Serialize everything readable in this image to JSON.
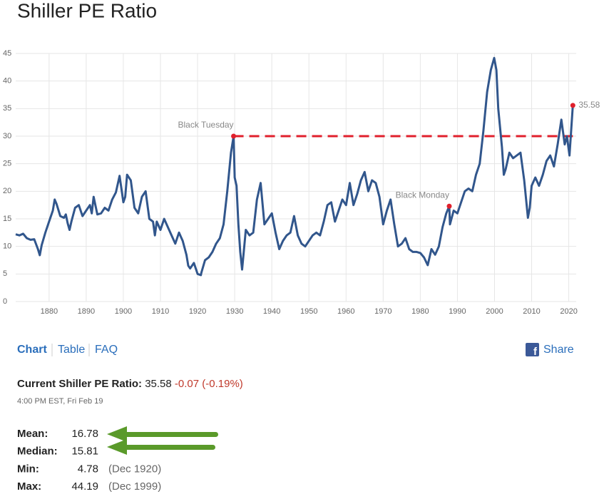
{
  "chart_data": {
    "type": "line",
    "title": "Shiller PE Ratio",
    "x": [
      1871,
      1872,
      1873,
      1874,
      1875,
      1876,
      1877,
      1877.5,
      1878,
      1879,
      1880,
      1881,
      1881.5,
      1882,
      1883,
      1884,
      1884.5,
      1885,
      1885.5,
      1886,
      1887,
      1888,
      1889,
      1890,
      1891,
      1891.5,
      1892,
      1893,
      1894,
      1895,
      1896,
      1897,
      1898,
      1899,
      1900,
      1900.5,
      1901,
      1902,
      1903,
      1904,
      1905,
      1906,
      1907,
      1908,
      1908.5,
      1909,
      1910,
      1911,
      1912,
      1913,
      1914,
      1915,
      1916,
      1917,
      1917.5,
      1918,
      1919,
      1920,
      1920.9,
      1921,
      1922,
      1923,
      1924,
      1925,
      1926,
      1927,
      1928,
      1929,
      1929.7,
      1930,
      1930.5,
      1931,
      1931.5,
      1932,
      1933,
      1934,
      1935,
      1936,
      1937,
      1938,
      1939,
      1940,
      1941,
      1942,
      1943,
      1944,
      1945,
      1946,
      1947,
      1948,
      1949,
      1950,
      1951,
      1952,
      1953,
      1954,
      1955,
      1956,
      1957,
      1958,
      1959,
      1960,
      1961,
      1962,
      1963,
      1964,
      1965,
      1966,
      1967,
      1968,
      1969,
      1970,
      1971,
      1972,
      1973,
      1974,
      1975,
      1976,
      1977,
      1978,
      1979,
      1980,
      1981,
      1982,
      1983,
      1984,
      1985,
      1986,
      1987,
      1987.8,
      1988,
      1989,
      1990,
      1991,
      1992,
      1993,
      1994,
      1995,
      1996,
      1997,
      1998,
      1999,
      1999.9,
      2000.5,
      2001,
      2002,
      2002.5,
      2003,
      2004,
      2005,
      2006,
      2007,
      2008,
      2009,
      2009.5,
      2010,
      2011,
      2012,
      2013,
      2014,
      2015,
      2016,
      2017,
      2018,
      2018.9,
      2019.5,
      2020.2,
      2020.7,
      2021.1
    ],
    "series": [
      {
        "color": "#31568c",
        "values": [
          12.2,
          12.0,
          12.3,
          11.5,
          11.2,
          11.3,
          9.5,
          8.4,
          10.2,
          12.5,
          14.5,
          16.5,
          18.5,
          17.7,
          15.5,
          15.2,
          15.8,
          14.2,
          13.0,
          14.5,
          17.0,
          17.5,
          15.5,
          16.5,
          17.5,
          16.0,
          19.0,
          15.8,
          16.0,
          17.0,
          16.5,
          18.5,
          19.8,
          22.8,
          18.0,
          19.0,
          23.0,
          22.0,
          17.0,
          16.0,
          19.0,
          20.0,
          15.0,
          14.5,
          12.0,
          14.5,
          13.0,
          15.0,
          13.5,
          12.0,
          10.5,
          12.5,
          11.0,
          8.5,
          6.5,
          6.0,
          7.0,
          5.0,
          4.78,
          5.2,
          7.5,
          8.0,
          9.0,
          10.5,
          11.5,
          14.0,
          20.0,
          27.0,
          30.0,
          22.5,
          21.0,
          14.0,
          9.0,
          5.8,
          13.0,
          12.0,
          12.5,
          18.5,
          21.5,
          14.0,
          15.0,
          16.0,
          12.5,
          9.5,
          11.0,
          12.0,
          12.5,
          15.5,
          12.0,
          10.5,
          10.0,
          11.0,
          12.0,
          12.5,
          12.0,
          14.5,
          17.5,
          18.0,
          14.5,
          16.5,
          18.5,
          17.5,
          21.5,
          17.5,
          19.5,
          22.0,
          23.5,
          20.0,
          22.0,
          21.5,
          19.0,
          14.0,
          16.5,
          18.5,
          14.0,
          10.0,
          10.5,
          11.5,
          9.5,
          9.0,
          9.0,
          8.8,
          8.0,
          6.6,
          9.5,
          8.5,
          10.0,
          13.5,
          16.0,
          17.3,
          14.0,
          16.5,
          16.0,
          18.0,
          20.0,
          20.5,
          20.0,
          23.0,
          25.0,
          31.0,
          38.0,
          42.0,
          44.19,
          42.0,
          35.0,
          28.0,
          23.0,
          24.0,
          27.0,
          26.0,
          26.5,
          27.0,
          22.0,
          15.2,
          17.0,
          21.0,
          22.5,
          21.0,
          23.0,
          25.5,
          26.5,
          24.5,
          28.5,
          33.0,
          28.5,
          30.0,
          26.5,
          31.5,
          35.58
        ]
      }
    ],
    "last_value_label": "35.58",
    "xlim": [
      1871,
      2022
    ],
    "xticks": [
      1880,
      1890,
      1900,
      1910,
      1920,
      1930,
      1940,
      1950,
      1960,
      1970,
      1980,
      1990,
      2000,
      2010,
      2020
    ],
    "ylim": [
      0,
      45
    ],
    "yticks": [
      0,
      5,
      10,
      15,
      20,
      25,
      30,
      35,
      40,
      45
    ],
    "grid": true,
    "annotations": [
      {
        "text": "Black Tuesday",
        "x": 1929.7,
        "y": 30.0
      },
      {
        "text": "Black Monday",
        "x": 1987.8,
        "y": 17.3
      }
    ],
    "marker_color": "#e0202c",
    "reference_line": {
      "y": 30,
      "x": [
        1929.7,
        2021.1
      ],
      "color": "#e0202c"
    }
  },
  "tabs": [
    "Chart",
    "Table",
    "FAQ"
  ],
  "share": "Share",
  "current": {
    "label": "Current Shiller PE Ratio:",
    "value": "35.58",
    "change": "-0.07 (-0.19%)",
    "time": "4:00 PM EST, Fri Feb 19"
  },
  "stats": [
    {
      "label": "Mean:",
      "value": "16.78"
    },
    {
      "label": "Median:",
      "value": "15.81"
    },
    {
      "label": "Min:",
      "value": "4.78",
      "note": "(Dec 1920)"
    },
    {
      "label": "Max:",
      "value": "44.19",
      "note": "(Dec 1999)"
    }
  ]
}
